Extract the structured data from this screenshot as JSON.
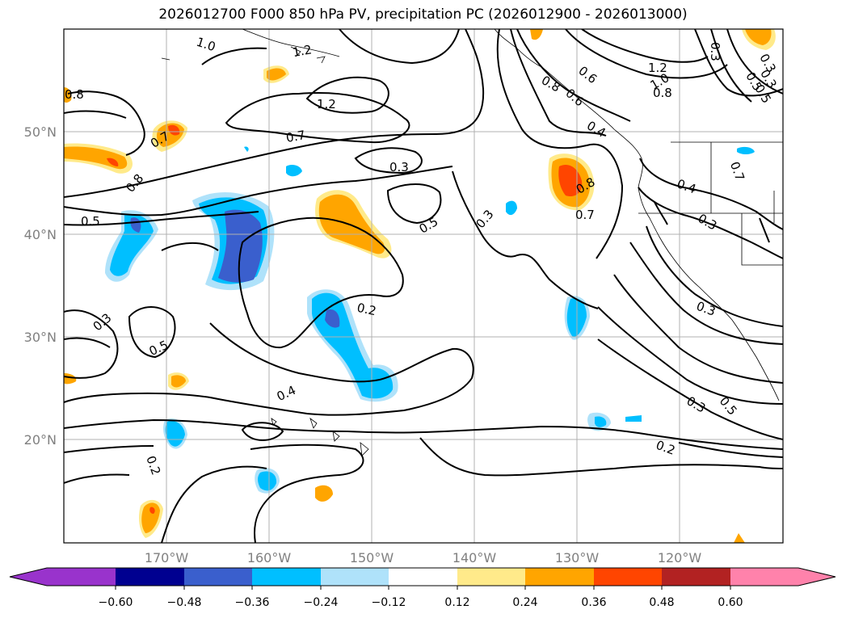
{
  "title": "2026012700 F000 850 hPa PV, precipitation PC (2026012900 - 2026013000)",
  "map": {
    "lat_labels": [
      "50°N",
      "40°N",
      "30°N",
      "20°N"
    ],
    "lon_labels": [
      "170°W",
      "160°W",
      "150°W",
      "140°W",
      "130°W",
      "120°W"
    ],
    "contour_labels": [
      "1.0",
      "1.2",
      "0.8",
      "0.6",
      "1.2",
      "1.0",
      "0.8",
      "1.2",
      "0.8",
      "0.5",
      "0.4",
      "0.3",
      "0.3",
      "0.7",
      "0.7",
      "0.7",
      "0.3",
      "0.8",
      "0.5",
      "0.3",
      "0.8",
      "0.7",
      "0.4",
      "0.3",
      "0.5",
      "0.3",
      "0.2",
      "0.3",
      "0.5",
      "0.4",
      "0.3",
      "0.5",
      "0.2",
      "0.2",
      "0.6",
      "0.3",
      "0.5"
    ]
  },
  "colorbar": {
    "ticks": [
      "−0.60",
      "−0.48",
      "−0.36",
      "−0.24",
      "−0.12",
      "0.12",
      "0.24",
      "0.36",
      "0.48",
      "0.60"
    ],
    "colors": [
      "#9933cc",
      "#000090",
      "#3a5fcd",
      "#00bfff",
      "#afe2fa",
      "#ffffff",
      "#ffea8a",
      "#ffa500",
      "#ff4500",
      "#b22222",
      "#ff82ab"
    ]
  },
  "style": {
    "grid_color": "#b0b0b0",
    "neg_colors": [
      "#afe2fa",
      "#00bfff",
      "#3a5fcd"
    ],
    "pos_colors": [
      "#ffea8a",
      "#ffa500",
      "#ff4500"
    ]
  }
}
